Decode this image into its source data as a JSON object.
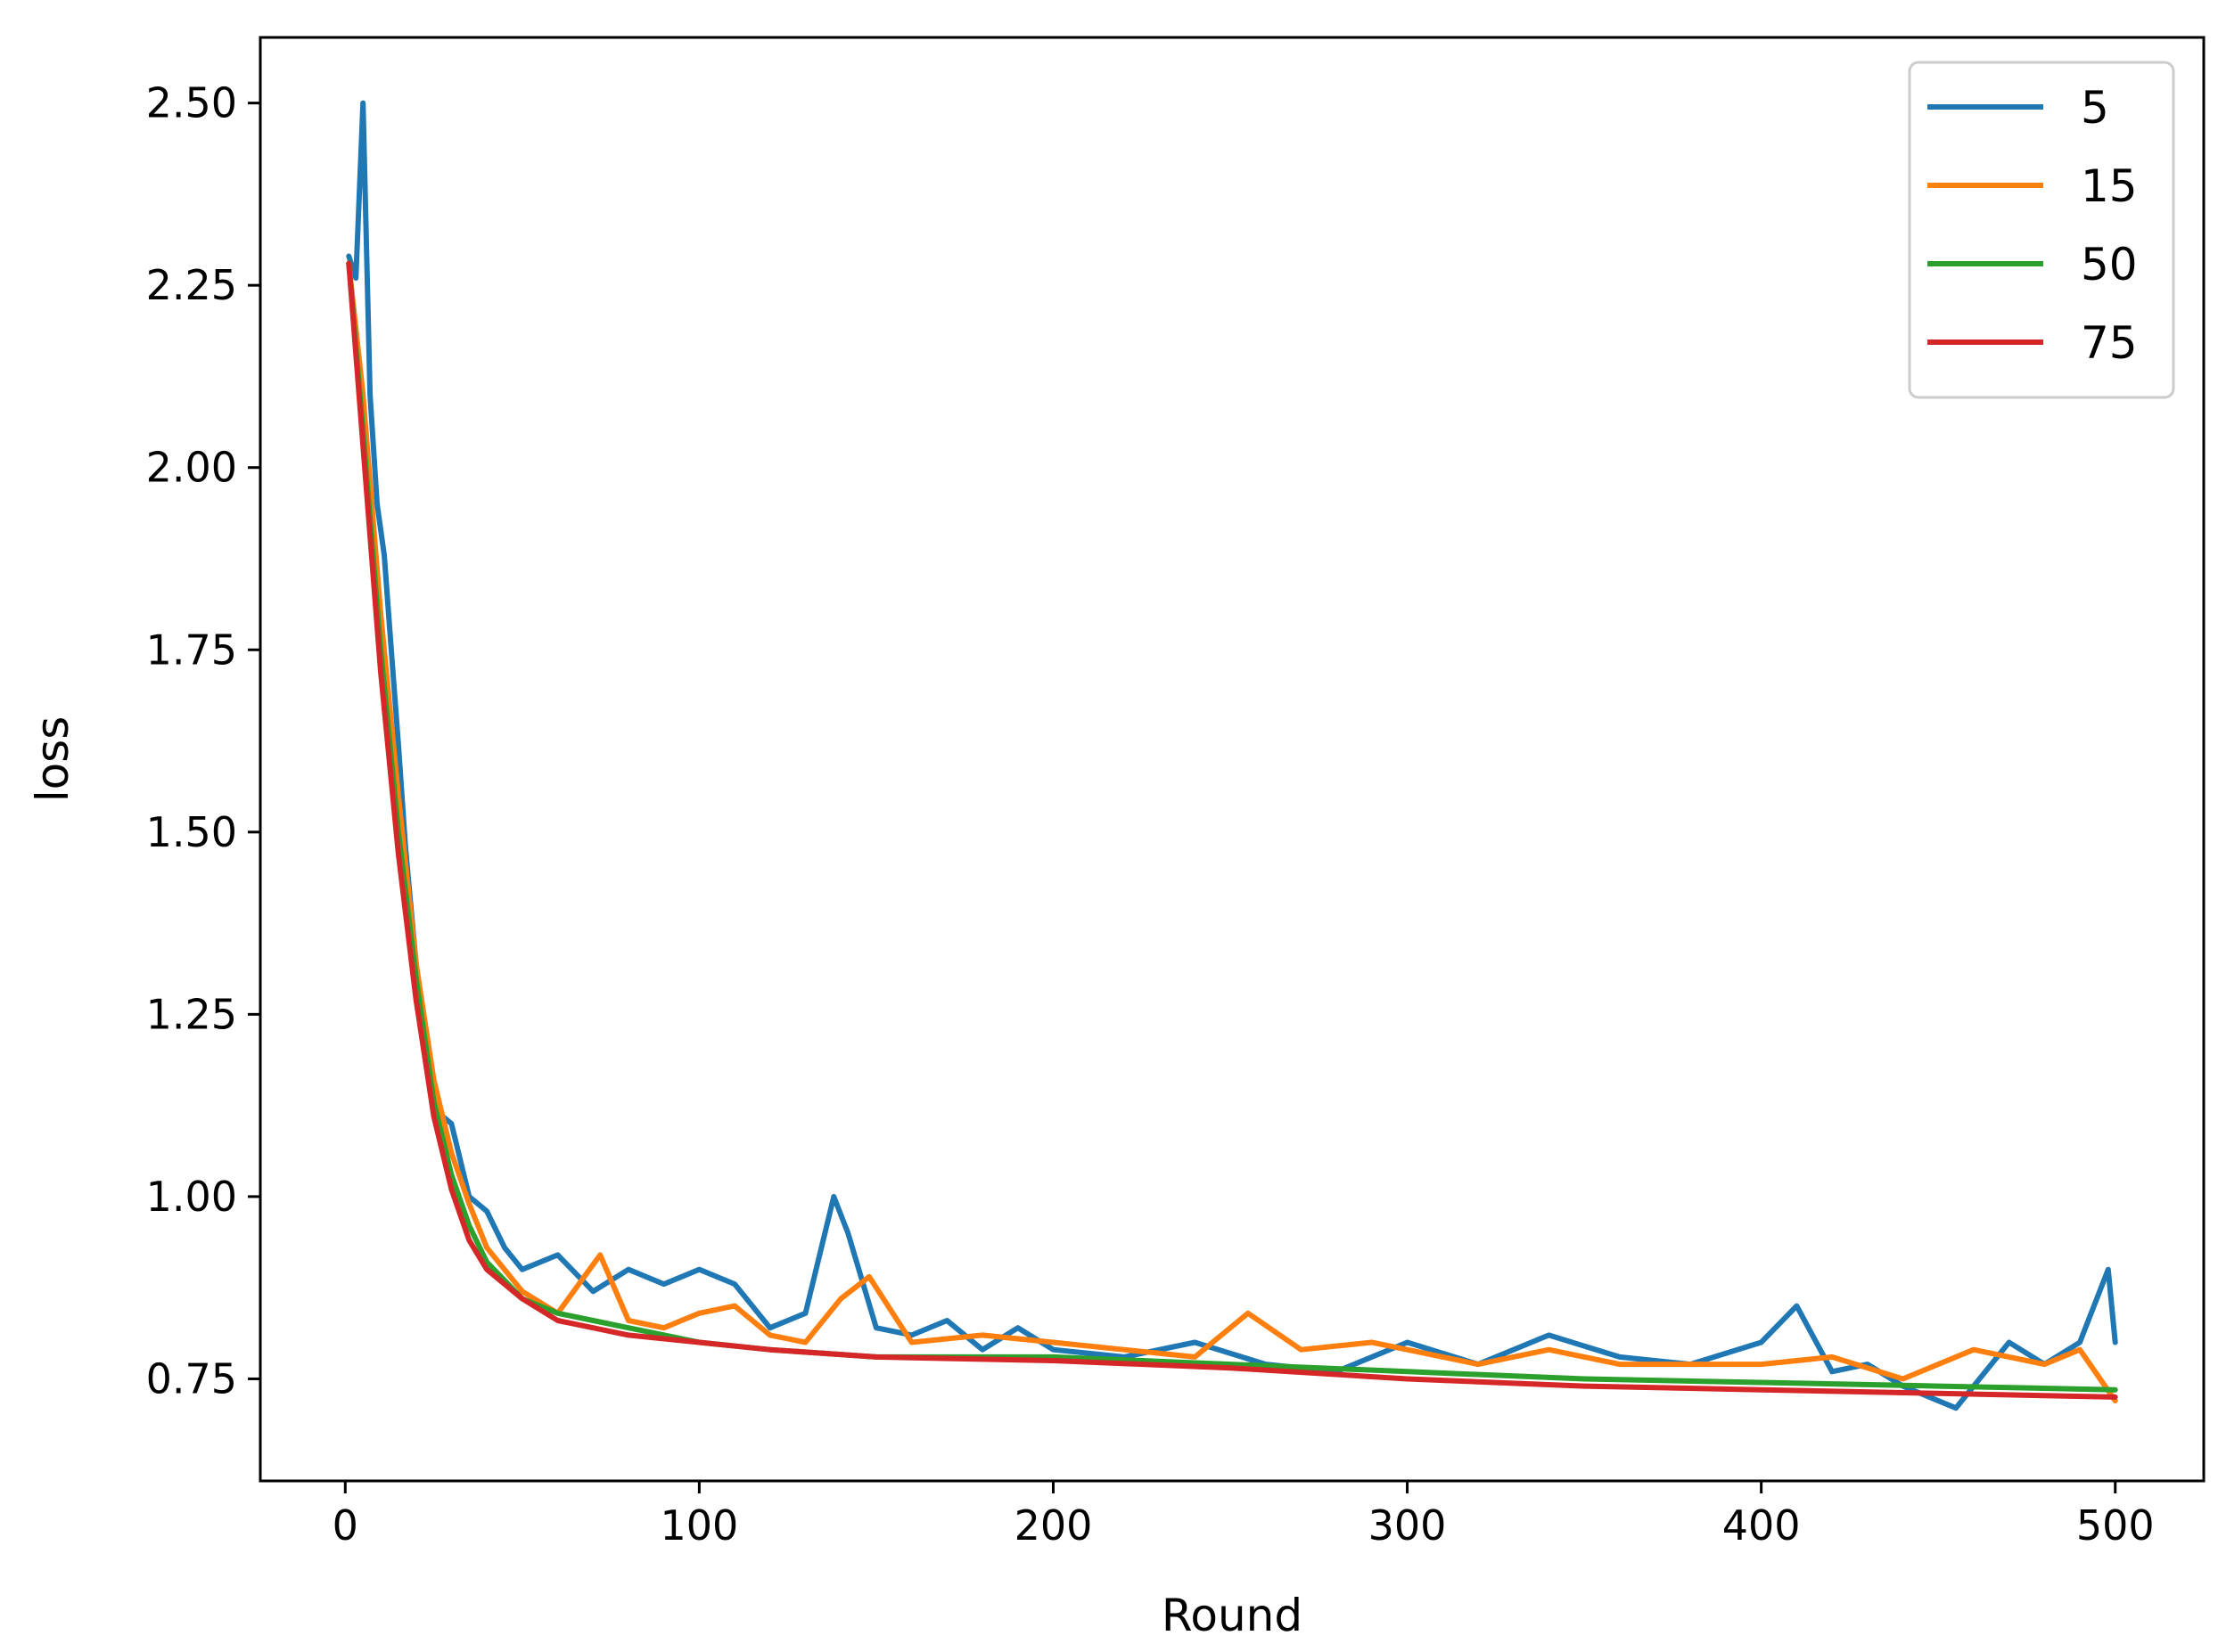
{
  "chart_data": {
    "type": "line",
    "title": "",
    "xlabel": "Round",
    "ylabel": "loss",
    "xlim": [
      -24,
      525
    ],
    "ylim": [
      0.61,
      2.59
    ],
    "xticks": [
      0,
      100,
      200,
      300,
      400,
      500
    ],
    "xtick_labels": [
      "0",
      "100",
      "200",
      "300",
      "400",
      "500"
    ],
    "yticks": [
      0.75,
      1.0,
      1.25,
      1.5,
      1.75,
      2.0,
      2.25,
      2.5
    ],
    "ytick_labels": [
      "0.75",
      "1.00",
      "1.25",
      "1.50",
      "1.75",
      "2.00",
      "2.25",
      "2.50"
    ],
    "grid": false,
    "legend_position": "top-right",
    "series": [
      {
        "name": "5",
        "color": "#1f77b4",
        "x": [
          1,
          3,
          5,
          7,
          9,
          11,
          13,
          15,
          17,
          20,
          25,
          30,
          35,
          40,
          45,
          50,
          60,
          70,
          80,
          90,
          100,
          110,
          120,
          130,
          138,
          142,
          150,
          160,
          170,
          180,
          190,
          200,
          220,
          240,
          260,
          280,
          300,
          320,
          340,
          360,
          380,
          400,
          410,
          420,
          430,
          440,
          455,
          470,
          480,
          490,
          498,
          500
        ],
        "y": [
          2.29,
          2.26,
          2.5,
          2.1,
          1.95,
          1.88,
          1.75,
          1.62,
          1.48,
          1.32,
          1.12,
          1.1,
          1.0,
          0.98,
          0.93,
          0.9,
          0.92,
          0.87,
          0.9,
          0.88,
          0.9,
          0.88,
          0.82,
          0.84,
          1.0,
          0.95,
          0.82,
          0.81,
          0.83,
          0.79,
          0.82,
          0.79,
          0.78,
          0.8,
          0.77,
          0.76,
          0.8,
          0.77,
          0.81,
          0.78,
          0.77,
          0.8,
          0.85,
          0.76,
          0.77,
          0.74,
          0.71,
          0.8,
          0.77,
          0.8,
          0.9,
          0.8
        ]
      },
      {
        "name": "15",
        "color": "#ff7f0e",
        "x": [
          1,
          5,
          10,
          15,
          20,
          25,
          30,
          35,
          40,
          50,
          60,
          72,
          80,
          90,
          100,
          110,
          120,
          130,
          140,
          148,
          160,
          180,
          200,
          220,
          240,
          255,
          270,
          290,
          300,
          320,
          340,
          360,
          380,
          400,
          420,
          440,
          460,
          480,
          490,
          500
        ],
        "y": [
          2.28,
          2.1,
          1.8,
          1.55,
          1.32,
          1.16,
          1.06,
          0.99,
          0.93,
          0.87,
          0.84,
          0.92,
          0.83,
          0.82,
          0.84,
          0.85,
          0.81,
          0.8,
          0.86,
          0.89,
          0.8,
          0.81,
          0.8,
          0.79,
          0.78,
          0.84,
          0.79,
          0.8,
          0.79,
          0.77,
          0.79,
          0.77,
          0.77,
          0.77,
          0.78,
          0.75,
          0.79,
          0.77,
          0.79,
          0.72
        ]
      },
      {
        "name": "50",
        "color": "#2ca02c",
        "x": [
          1,
          5,
          10,
          15,
          20,
          25,
          30,
          35,
          40,
          50,
          60,
          70,
          80,
          100,
          120,
          150,
          200,
          250,
          300,
          350,
          400,
          450,
          500
        ],
        "y": [
          2.28,
          2.05,
          1.75,
          1.5,
          1.3,
          1.13,
          1.03,
          0.96,
          0.91,
          0.86,
          0.84,
          0.83,
          0.82,
          0.8,
          0.79,
          0.78,
          0.78,
          0.77,
          0.76,
          0.75,
          0.745,
          0.74,
          0.735
        ]
      },
      {
        "name": "75",
        "color": "#d62728",
        "x": [
          1,
          5,
          10,
          15,
          20,
          25,
          30,
          35,
          40,
          50,
          60,
          70,
          80,
          100,
          120,
          150,
          200,
          250,
          300,
          350,
          400,
          450,
          500
        ],
        "y": [
          2.28,
          2.03,
          1.72,
          1.47,
          1.27,
          1.11,
          1.01,
          0.94,
          0.9,
          0.86,
          0.83,
          0.82,
          0.81,
          0.8,
          0.79,
          0.78,
          0.775,
          0.765,
          0.75,
          0.74,
          0.735,
          0.73,
          0.725
        ]
      }
    ]
  }
}
